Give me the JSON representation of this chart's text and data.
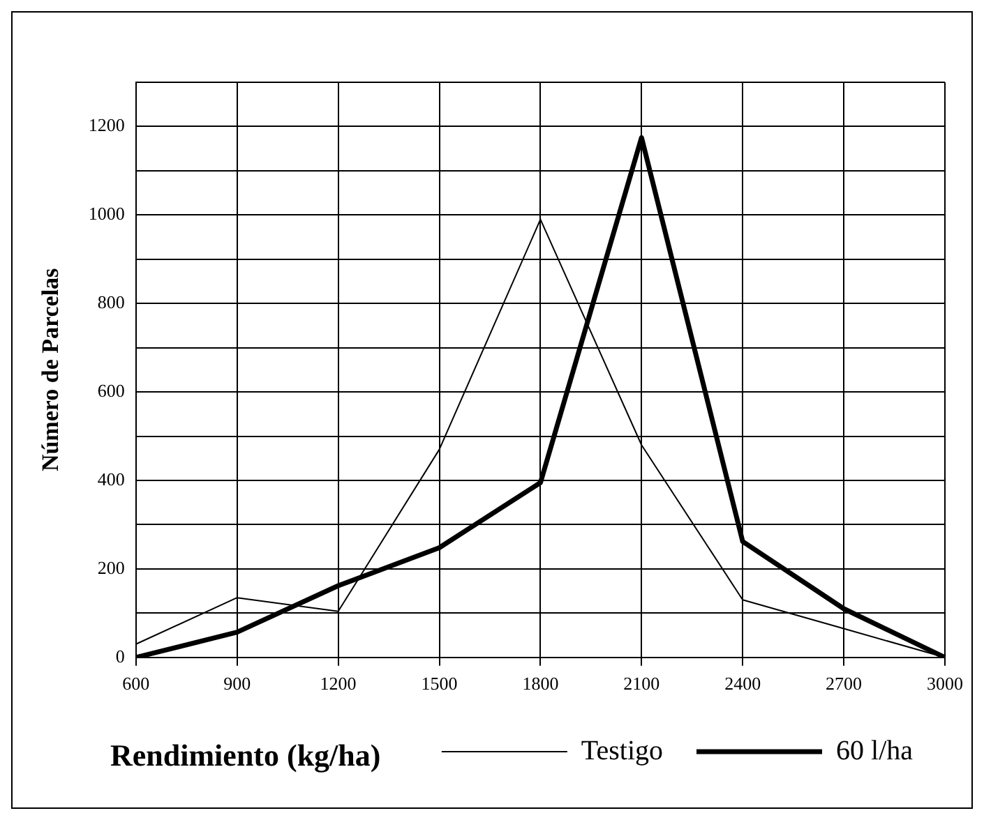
{
  "chart_data": {
    "type": "line",
    "xlabel": "Rendimiento (kg/ha)",
    "ylabel": "Número de Parcelas",
    "categories": [
      "600",
      "900",
      "1200",
      "1500",
      "1800",
      "2100",
      "2400",
      "2700",
      "3000"
    ],
    "series": [
      {
        "name": "Testigo",
        "color": "#000000",
        "values": [
          30,
          135,
          104,
          470,
          990,
          480,
          130,
          65,
          0
        ]
      },
      {
        "name": "60 l/ha",
        "color": "#000000",
        "values": [
          0,
          57,
          162,
          248,
          395,
          1175,
          262,
          110,
          0
        ]
      }
    ],
    "ylim": [
      0,
      1300
    ],
    "yticks": [
      0,
      {
        "value": 100,
        "label": null
      },
      200,
      {
        "value": 300,
        "label": null
      },
      400,
      {
        "value": 500,
        "label": null
      },
      600,
      {
        "value": 700,
        "label": null
      },
      800,
      {
        "value": 900,
        "label": null
      },
      1000,
      {
        "value": 1100,
        "label": null
      },
      1200,
      {
        "value": 1300,
        "label": null
      }
    ],
    "grid": true,
    "legend": "bottom",
    "marker": "none",
    "line_style": "solid"
  }
}
